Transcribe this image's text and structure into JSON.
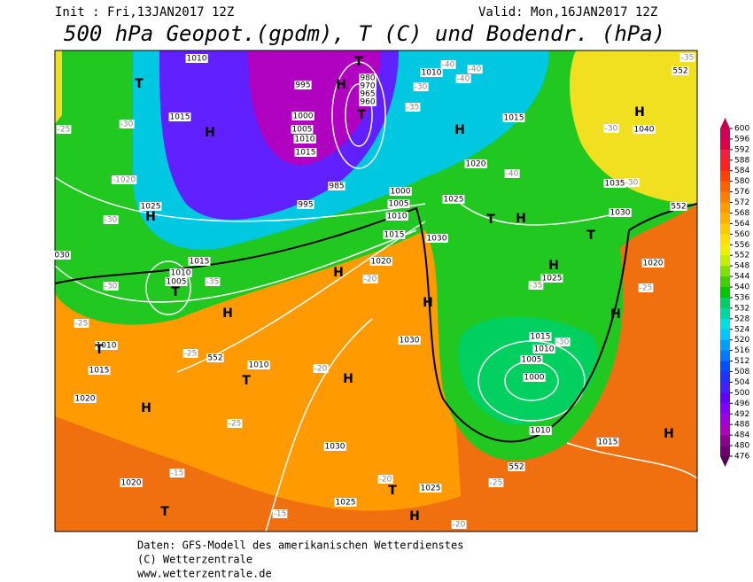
{
  "header": {
    "init": "Init : Fri,13JAN2017 12Z",
    "valid": "Valid: Mon,16JAN2017 12Z",
    "title": "500 hPa Geopot.(gpdm), T (C) und Bodendr. (hPa)"
  },
  "colorbar": {
    "ticks": [
      600,
      596,
      592,
      588,
      584,
      580,
      576,
      572,
      568,
      564,
      560,
      556,
      552,
      548,
      544,
      540,
      536,
      532,
      528,
      524,
      520,
      516,
      512,
      508,
      504,
      500,
      496,
      492,
      488,
      484,
      480,
      476
    ],
    "colors": [
      "#d0005a",
      "#e0004a",
      "#f0203a",
      "#ff2020",
      "#ff4000",
      "#ff6000",
      "#ff8000",
      "#ff9a00",
      "#ffb000",
      "#ffc800",
      "#ffe000",
      "#f0f000",
      "#c0f000",
      "#80e000",
      "#40d000",
      "#00c800",
      "#00d060",
      "#00d8a0",
      "#00e0e0",
      "#00c8ff",
      "#00a0ff",
      "#0078ff",
      "#0050ff",
      "#2030ff",
      "#4020ff",
      "#6000ff",
      "#8000ff",
      "#a000e0",
      "#b000c0",
      "#900090",
      "#700070"
    ]
  },
  "map_labels": [
    "1010",
    "T",
    "1015",
    "-30",
    "H",
    "-1020",
    "1025",
    "H",
    "-30",
    "030",
    "1015",
    "1010",
    "1005",
    "T",
    "-30",
    "H",
    "-35",
    "-25",
    "1010",
    "T",
    "1015",
    "-25",
    "552",
    "1010",
    "T",
    "-20",
    "H",
    "1020",
    "H",
    "-25",
    "1030",
    "-20",
    "T",
    "1025",
    "1025",
    "1020",
    "-15",
    "T",
    "-15",
    "H",
    "-20",
    "1030",
    "H",
    "1020",
    "H",
    "-20",
    "1015",
    "1010",
    "1005",
    "1000",
    "995",
    "985",
    "1015",
    "1010",
    "1005",
    "1000",
    "995",
    "T",
    "H",
    "T",
    "980",
    "970",
    "965",
    "960",
    "1010",
    "-40",
    "-40",
    "-40",
    "-30",
    "-35",
    "1015",
    "H",
    "1020",
    "-40",
    "1025",
    "T",
    "H",
    "1030",
    "T",
    "H",
    "-35",
    "1025",
    "1015",
    "1010",
    "1005",
    "1000",
    "-30",
    "H",
    "1010",
    "552",
    "-25",
    "1015",
    "H",
    "1020",
    "-25",
    "1030",
    "552",
    "1035",
    "-30",
    "H",
    "1040",
    "-30",
    "552",
    "-35",
    "-25"
  ],
  "footer": [
    "Daten: GFS-Modell des amerikanischen Wetterdienstes",
    "(C) Wetterzentrale",
    "www.wetterzentrale.de"
  ]
}
